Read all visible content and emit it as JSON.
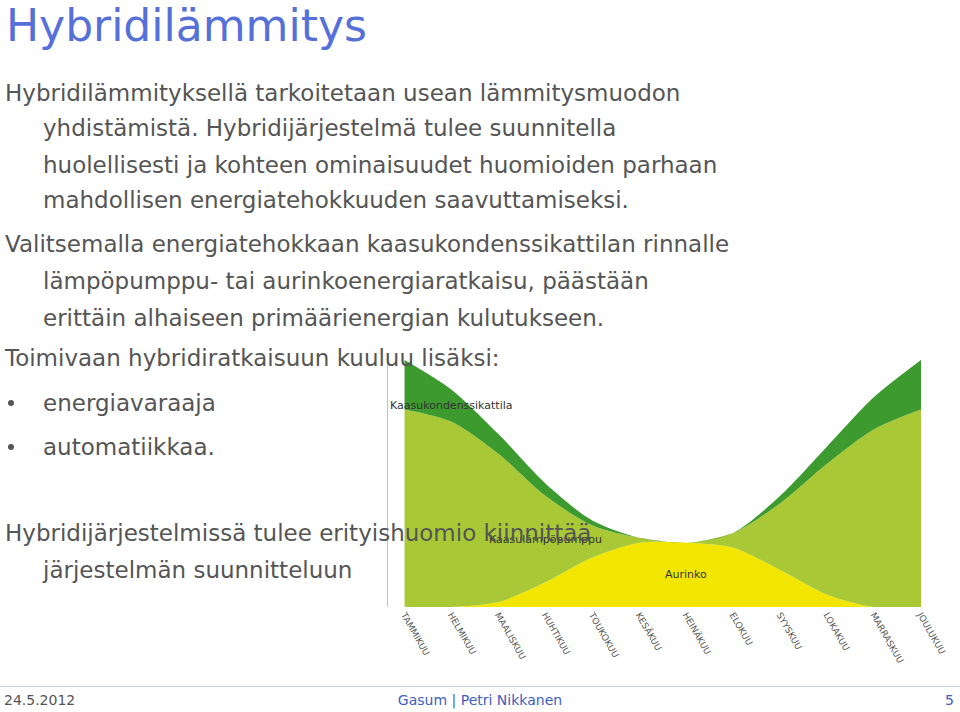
{
  "slide": {
    "title": "Hybridilämmitys",
    "blocks": [
      {
        "kind": "paragraph",
        "lines": [
          "Hybridilämmityksellä tarkoitetaan usean lämmitysmuodon",
          "yhdistämistä. Hybridijärjestelmä tulee suunnitella",
          "huolellisesti ja kohteen ominaisuudet huomioiden parhaan",
          "mahdollisen energiatehokkuuden saavuttamiseksi."
        ]
      },
      {
        "kind": "paragraph",
        "lines": [
          "Valitsemalla energiatehokkaan kaasukondenssikattilan rinnalle",
          "lämpöpumppu- tai aurinkoenergiaratkaisu, päästään",
          "erittäin alhaiseen primäärienergian kulutukseen."
        ]
      },
      {
        "kind": "paragraph",
        "lines": [
          "Toimivaan hybridiratkaisuun kuuluu lisäksi:"
        ]
      },
      {
        "kind": "bullet",
        "lines": [
          "energiavaraaja"
        ]
      },
      {
        "kind": "bullet",
        "lines": [
          "automatiikkaa."
        ]
      },
      {
        "kind": "paragraph",
        "lines": [
          "Hybridijärjestelmissä tulee erityishuomio kiinnittää",
          "järjestelmän suunnitteluun"
        ]
      }
    ],
    "footer": {
      "date": "24.5.2012",
      "author": "Gasum | Petri Nikkanen",
      "page": "5"
    }
  },
  "chart_data": {
    "type": "area",
    "stacked": true,
    "grid": false,
    "tick_labels": "x",
    "categories": [
      "TAMMIKUU",
      "HELMIKUU",
      "MAALISKUU",
      "HUHTIKUU",
      "TOUKOKUU",
      "KESÄKUU",
      "HEINÄKUU",
      "ELOKUU",
      "SYYSKUU",
      "LOKAKUU",
      "MARRASKUU",
      "JOULUKUU"
    ],
    "ylim": [
      0,
      100
    ],
    "series": [
      {
        "name": "Aurinko",
        "color": "#f2e600",
        "values": [
          0,
          0,
          2,
          10,
          20,
          26,
          26,
          24,
          15,
          5,
          0,
          0
        ]
      },
      {
        "name": "Kaasulämpöpumppu",
        "color": "#a8c836",
        "values": [
          80,
          75,
          60,
          35,
          13,
          2,
          0,
          6,
          27,
          53,
          72,
          80
        ]
      },
      {
        "name": "Kaasukondenssikattila",
        "color": "#3d9a2f",
        "values": [
          20,
          13,
          8,
          5,
          2,
          0,
          0,
          0,
          3,
          7,
          13,
          20
        ]
      }
    ]
  }
}
